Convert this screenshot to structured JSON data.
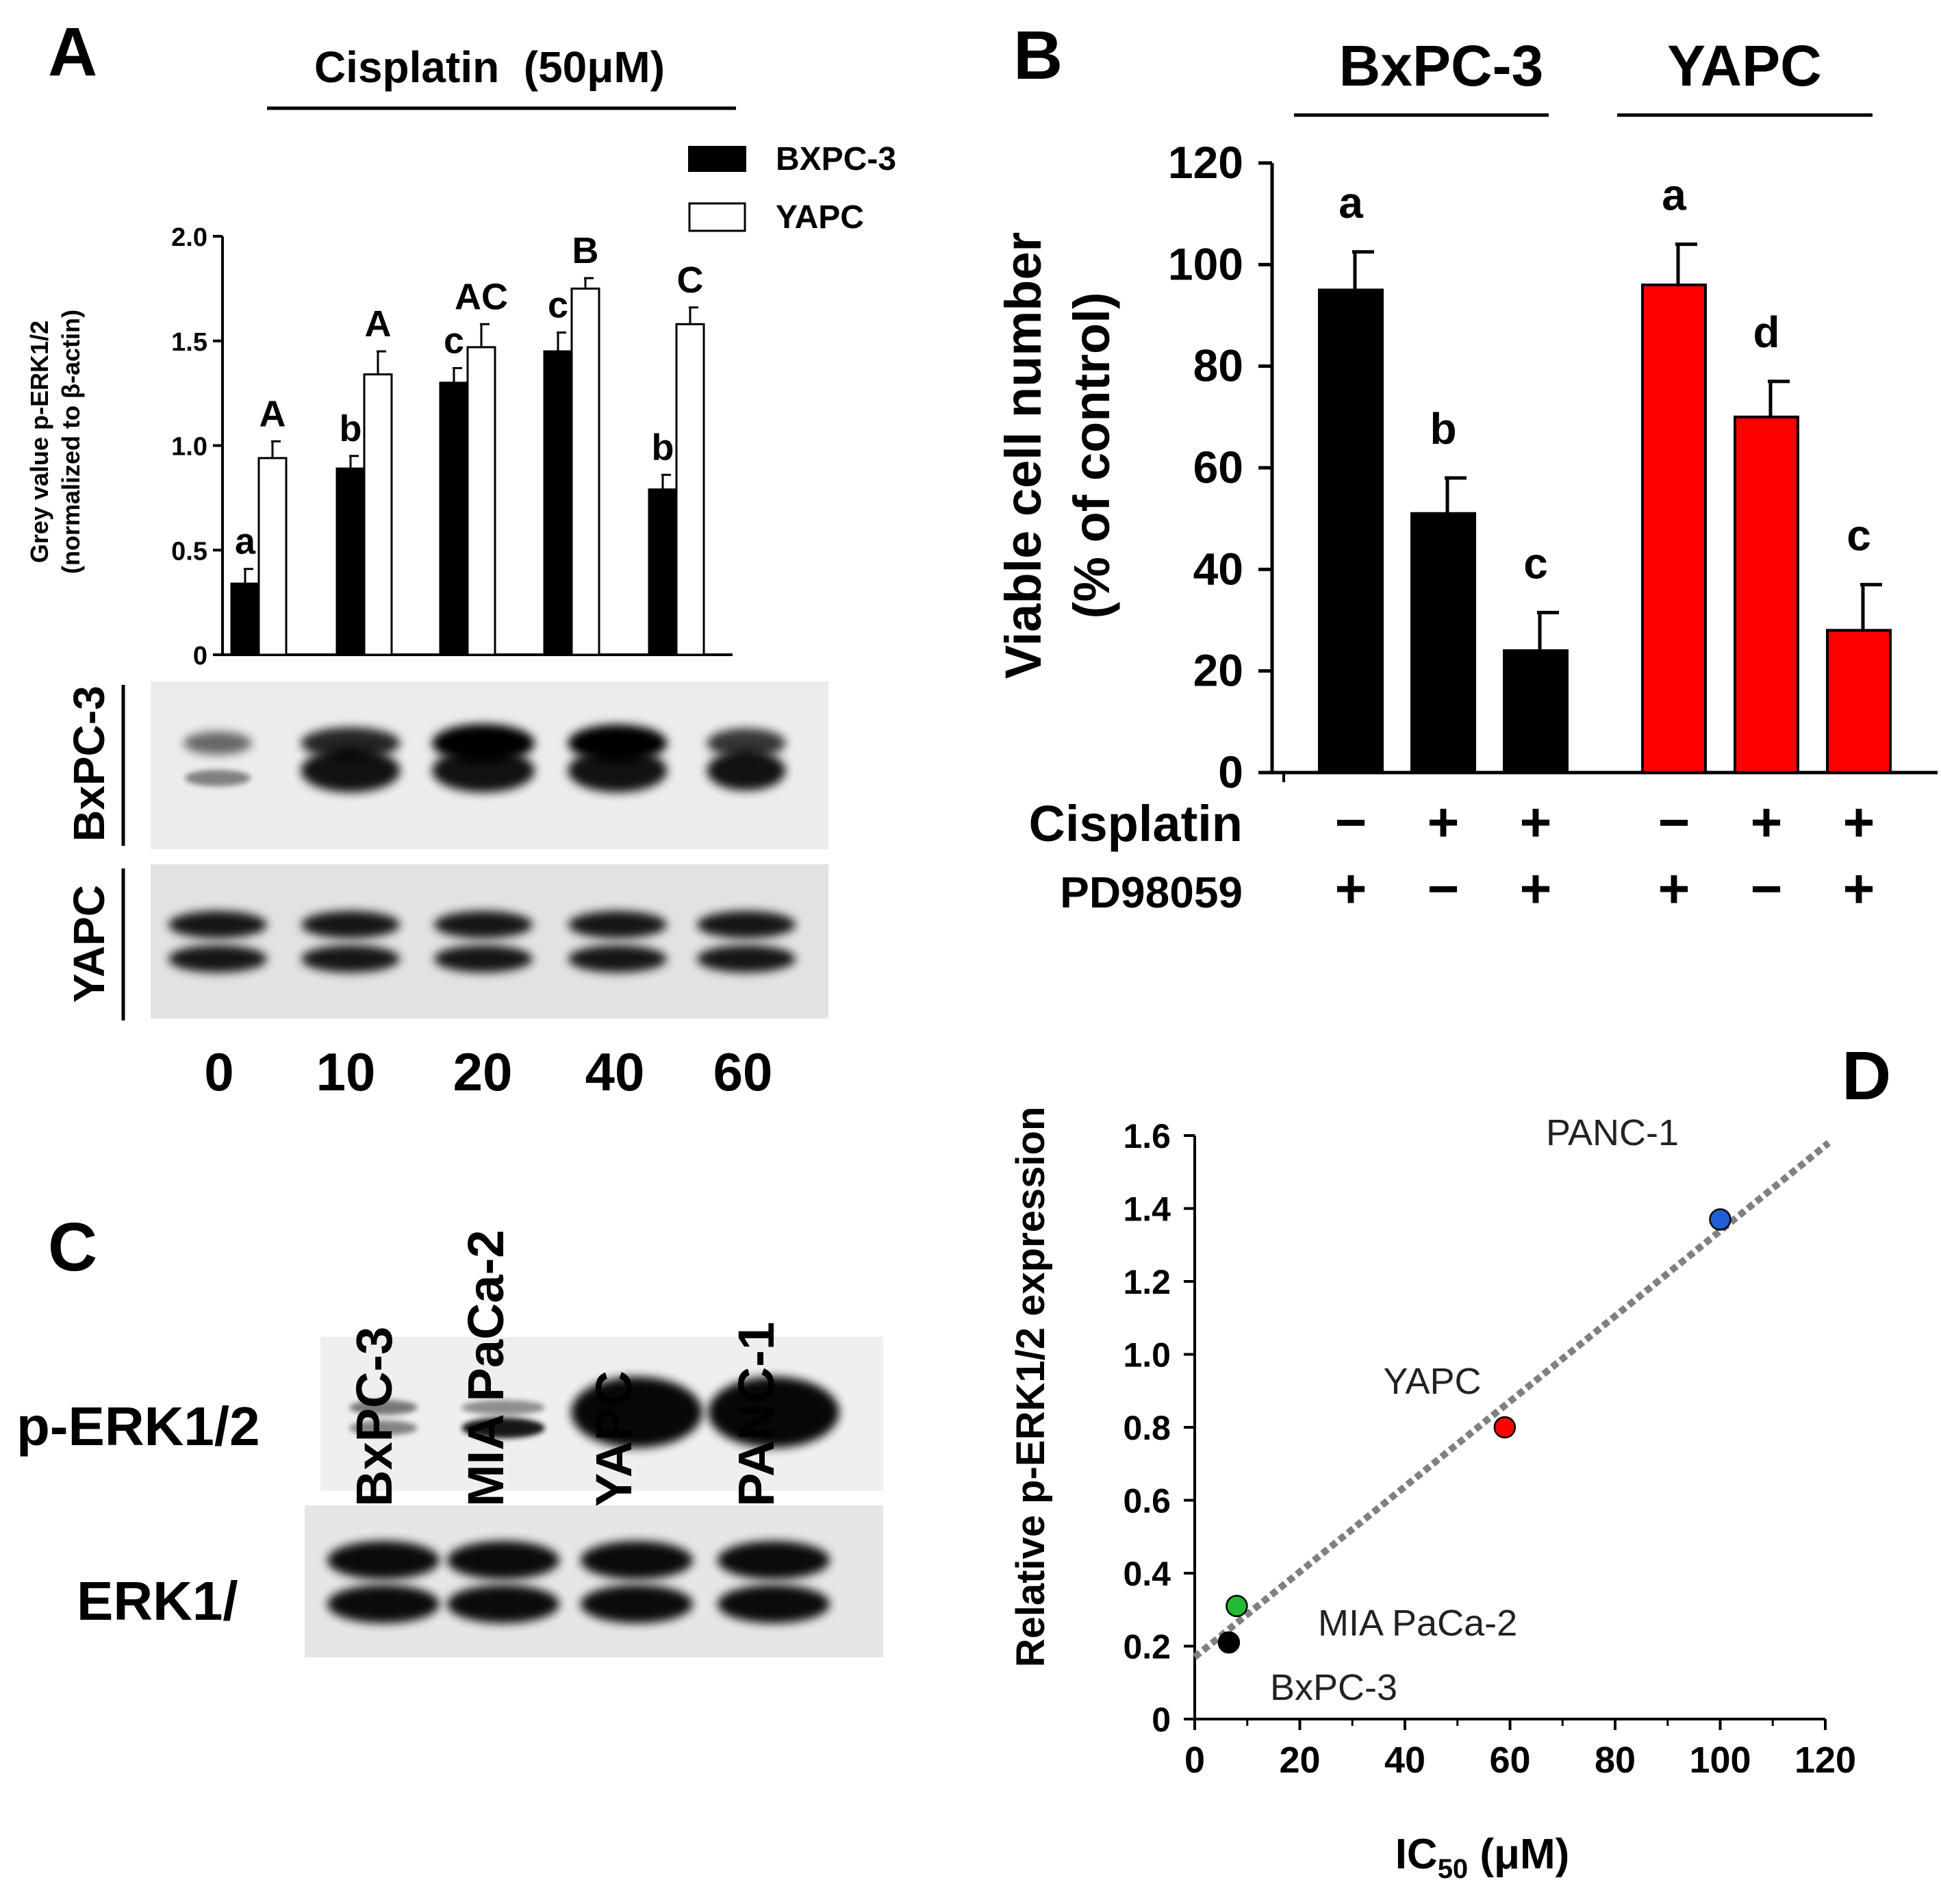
{
  "panel_labels": [
    "A",
    "B",
    "C",
    "D"
  ],
  "blots_a": {
    "row_labels": [
      "BxPC-3",
      "YAPC"
    ],
    "lane_labels": [
      "0",
      "10",
      "20",
      "40",
      "60"
    ]
  },
  "blots_c": {
    "lane_labels": [
      "BxPC-3",
      "MIA PaCa-2",
      "YAPC",
      "PANC-1"
    ],
    "row_labels": [
      "p-ERK1/2",
      "ERK1/"
    ]
  },
  "chart_data": [
    {
      "id": "A",
      "type": "bar",
      "header": "Cisplatin  (50μM)",
      "ylabel_lines": [
        "Grey value p-ERK1/2",
        "(normalized to β-actin)"
      ],
      "ylim": [
        0,
        2.0
      ],
      "yticks": [
        "0",
        "0.5",
        "1.0",
        "1.5",
        "2.0"
      ],
      "categories": [
        "0",
        "10",
        "20",
        "40",
        "60"
      ],
      "legend_position": "top-right",
      "series": [
        {
          "name": "BXPC-3",
          "color": "#000000",
          "values": [
            0.34,
            0.89,
            1.3,
            1.45,
            0.79
          ],
          "errors": [
            0.07,
            0.06,
            0.07,
            0.09,
            0.07
          ],
          "letters": [
            "a",
            "b",
            "c",
            "c",
            "b"
          ]
        },
        {
          "name": "YAPC",
          "color": "#ffffff",
          "values": [
            0.94,
            1.34,
            1.47,
            1.75,
            1.58
          ],
          "errors": [
            0.08,
            0.11,
            0.11,
            0.05,
            0.08
          ],
          "letters": [
            "A",
            "A",
            "AC",
            "B",
            "C"
          ]
        }
      ]
    },
    {
      "id": "B",
      "type": "bar",
      "group_headers": [
        "BxPC-3",
        "YAPC"
      ],
      "ylabel_lines": [
        "Viable cell number",
        "(% of control)"
      ],
      "ylim": [
        0,
        120
      ],
      "yticks": [
        "0",
        "20",
        "40",
        "60",
        "80",
        "100",
        "120"
      ],
      "treatment_rows": [
        {
          "name": "Cisplatin",
          "signs": [
            "−",
            "+",
            "+",
            "−",
            "+",
            "+"
          ]
        },
        {
          "name": "PD98059",
          "signs": [
            "+",
            "−",
            "+",
            "+",
            "−",
            "+"
          ]
        }
      ],
      "bars": [
        {
          "value": 95,
          "error": 7.5,
          "letter": "a",
          "color": "#000000"
        },
        {
          "value": 51,
          "error": 7,
          "letter": "b",
          "color": "#000000"
        },
        {
          "value": 24,
          "error": 7.5,
          "letter": "c",
          "color": "#000000"
        },
        {
          "value": 96,
          "error": 8,
          "letter": "a",
          "color": "#ff0000"
        },
        {
          "value": 70,
          "error": 7,
          "letter": "d",
          "color": "#ff0000"
        },
        {
          "value": 28,
          "error": 9,
          "letter": "c",
          "color": "#ff0000"
        }
      ]
    },
    {
      "id": "D",
      "type": "scatter",
      "ylabel": "Relative p-ERK1/2 expression",
      "xlabel_main": "IC",
      "xlabel_sub": "50",
      "xlabel_unit": " (μM)",
      "xlim": [
        0,
        120
      ],
      "ylim": [
        0,
        1.6
      ],
      "xticks": [
        "0",
        "20",
        "40",
        "60",
        "80",
        "100",
        "120"
      ],
      "yticks": [
        "0",
        "0.2",
        "0.4",
        "0.6",
        "0.8",
        "1.0",
        "1.2",
        "1.4",
        "1.6"
      ],
      "points": [
        {
          "label": "BxPC-3",
          "x": 6.5,
          "y": 0.21,
          "color": "#000000"
        },
        {
          "label": "MIA PaCa-2",
          "x": 8,
          "y": 0.31,
          "color": "#22bb33"
        },
        {
          "label": "YAPC",
          "x": 59,
          "y": 0.8,
          "color": "#ff0000"
        },
        {
          "label": "PANC-1",
          "x": 100,
          "y": 1.37,
          "color": "#1f5fd6"
        }
      ],
      "trendline": {
        "x": [
          0,
          120
        ],
        "y": [
          0.17,
          1.58
        ],
        "style": "dotted",
        "color": "#808080"
      }
    }
  ]
}
